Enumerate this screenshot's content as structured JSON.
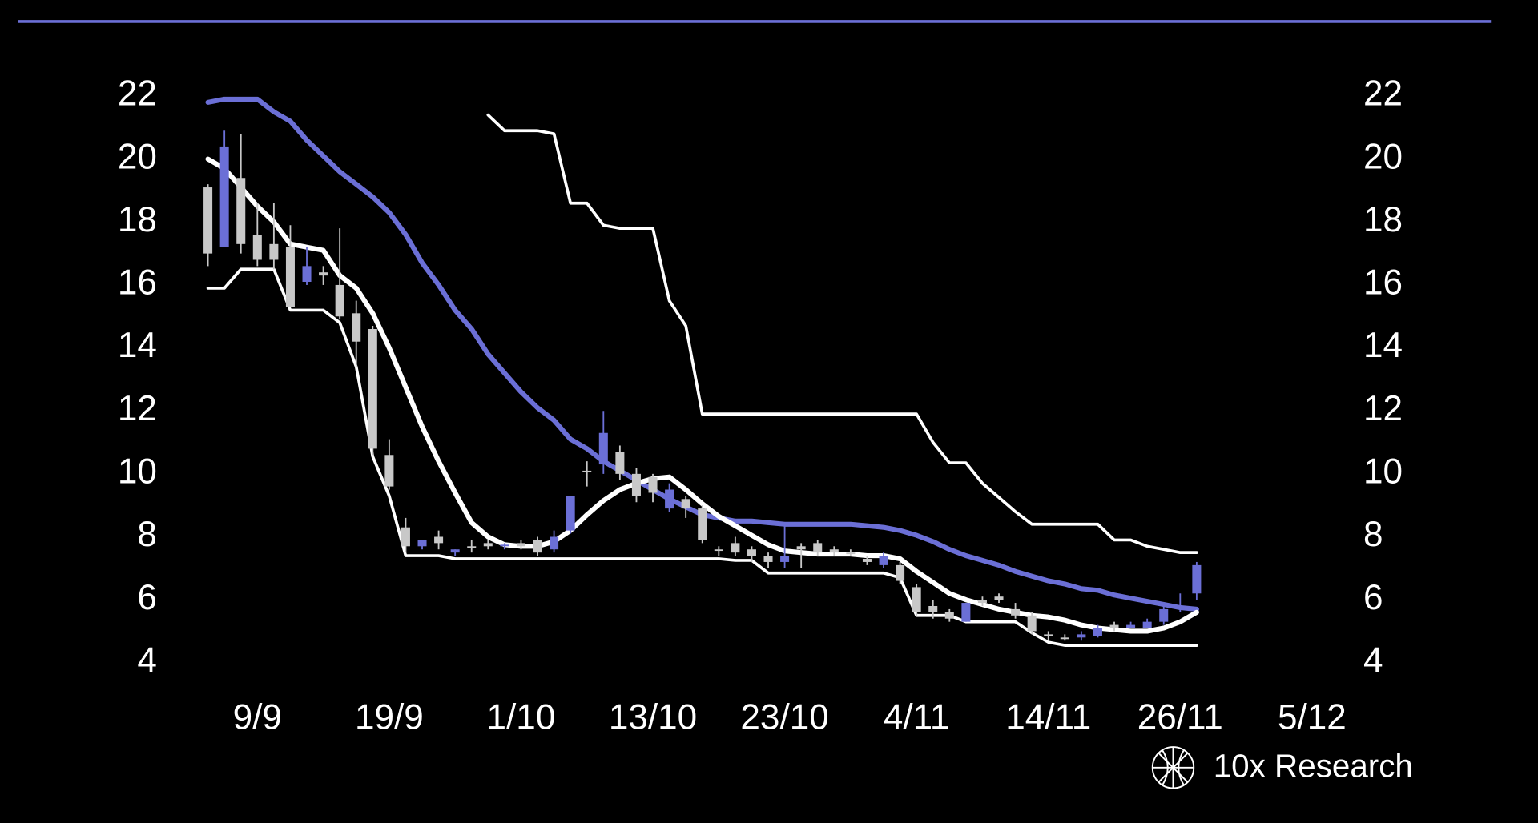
{
  "chart_data": {
    "type": "candlestick",
    "watermark": "10x Research",
    "categories": [
      null,
      null,
      null,
      "9/9",
      null,
      null,
      null,
      null,
      null,
      null,
      null,
      "19/9",
      null,
      null,
      null,
      null,
      null,
      null,
      null,
      "1/10",
      null,
      null,
      null,
      null,
      null,
      null,
      null,
      "13/10",
      null,
      null,
      null,
      null,
      null,
      null,
      null,
      "23/10",
      null,
      null,
      null,
      null,
      null,
      null,
      null,
      "4/11",
      null,
      null,
      null,
      null,
      null,
      null,
      null,
      "14/11",
      null,
      null,
      null,
      null,
      null,
      null,
      null,
      "26/11",
      null,
      null,
      null,
      null,
      null,
      null,
      null,
      "5/12"
    ],
    "open": [
      19.1,
      17.2,
      19.4,
      17.6,
      17.3,
      17.2,
      16.1,
      16.4,
      16.0,
      15.1,
      14.6,
      10.6,
      8.3,
      7.7,
      8.0,
      7.5,
      7.7,
      7.8,
      7.7,
      7.8,
      7.9,
      7.6,
      8.2,
      10.1,
      10.3,
      10.7,
      10.0,
      9.9,
      8.9,
      9.2,
      8.9,
      7.6,
      7.8,
      7.6,
      7.4,
      7.2,
      7.7,
      7.8,
      7.6,
      7.5,
      7.3,
      7.1,
      7.1,
      6.4,
      5.8,
      5.6,
      5.3,
      6.0,
      6.1,
      5.7,
      5.5,
      4.9,
      4.8,
      4.8,
      4.85,
      5.2,
      5.1,
      5.1,
      5.3,
      5.7,
      6.2,
      null,
      null,
      null,
      null,
      null,
      null,
      null
    ],
    "high": [
      19.2,
      20.9,
      20.8,
      18.6,
      18.6,
      17.9,
      17.2,
      16.6,
      17.8,
      15.5,
      14.7,
      11.1,
      8.6,
      7.9,
      8.2,
      7.6,
      7.9,
      7.9,
      7.8,
      7.9,
      8.0,
      8.2,
      9.3,
      10.4,
      12.0,
      10.9,
      10.2,
      10.0,
      9.7,
      9.3,
      9.0,
      7.7,
      8.0,
      7.7,
      7.5,
      8.4,
      7.8,
      7.9,
      7.7,
      7.6,
      7.4,
      7.5,
      7.2,
      6.5,
      6.0,
      5.7,
      5.9,
      6.1,
      6.2,
      5.9,
      5.6,
      5.0,
      4.9,
      5.0,
      5.2,
      5.3,
      5.3,
      5.4,
      5.9,
      6.2,
      7.2,
      null,
      null,
      null,
      null,
      null,
      null,
      null
    ],
    "low": [
      16.6,
      17.2,
      17.0,
      16.6,
      16.5,
      15.3,
      16.0,
      16.0,
      14.9,
      13.4,
      10.6,
      9.5,
      7.5,
      7.6,
      7.6,
      7.4,
      7.5,
      7.6,
      7.6,
      7.6,
      7.4,
      7.5,
      8.1,
      9.6,
      10.0,
      9.8,
      9.1,
      9.1,
      8.8,
      8.6,
      7.8,
      7.4,
      7.4,
      7.2,
      7.0,
      7.0,
      7.0,
      7.4,
      7.4,
      7.4,
      7.1,
      7.0,
      6.5,
      5.5,
      5.4,
      5.3,
      5.3,
      5.8,
      5.9,
      5.4,
      4.9,
      4.7,
      4.7,
      4.7,
      4.8,
      5.0,
      5.1,
      5.1,
      5.2,
      5.6,
      6.0,
      null,
      null,
      null,
      null,
      null,
      null,
      null
    ],
    "close": [
      17.0,
      20.4,
      17.3,
      16.8,
      16.8,
      15.3,
      16.6,
      16.3,
      15.0,
      14.2,
      10.8,
      9.6,
      7.7,
      7.9,
      7.8,
      7.6,
      7.7,
      7.7,
      7.75,
      7.7,
      7.5,
      8.0,
      9.3,
      10.05,
      11.3,
      10.0,
      9.3,
      9.4,
      9.5,
      8.9,
      7.9,
      7.6,
      7.5,
      7.4,
      7.2,
      7.4,
      7.6,
      7.5,
      7.5,
      7.45,
      7.2,
      7.4,
      6.6,
      5.6,
      5.6,
      5.4,
      5.9,
      5.9,
      6.0,
      5.5,
      5.0,
      4.85,
      4.75,
      4.9,
      5.1,
      5.1,
      5.2,
      5.3,
      5.7,
      5.8,
      7.1,
      null,
      null,
      null,
      null,
      null,
      null,
      null
    ],
    "up_color": "#6b6fd6",
    "down_color": "#c8c8c8",
    "lines": [
      {
        "color": "#6b6fd6",
        "line_width": 5,
        "values": [
          21.8,
          21.9,
          21.9,
          21.9,
          21.5,
          21.2,
          20.6,
          20.1,
          19.6,
          19.2,
          18.8,
          18.3,
          17.6,
          16.7,
          16.0,
          15.2,
          14.6,
          13.8,
          13.2,
          12.6,
          12.1,
          11.7,
          11.1,
          10.8,
          10.4,
          10.1,
          9.8,
          9.5,
          9.2,
          8.95,
          8.7,
          8.6,
          8.5,
          8.5,
          8.45,
          8.4,
          8.4,
          8.4,
          8.4,
          8.4,
          8.35,
          8.3,
          8.2,
          8.05,
          7.85,
          7.6,
          7.4,
          7.25,
          7.1,
          6.9,
          6.75,
          6.6,
          6.5,
          6.35,
          6.3,
          6.15,
          6.05,
          5.95,
          5.85,
          5.75,
          5.7,
          null,
          null,
          null,
          null,
          null,
          null,
          null
        ]
      },
      {
        "color": "#ffffff",
        "line_width": 5,
        "values": [
          20.0,
          19.7,
          19.1,
          18.5,
          18.0,
          17.3,
          17.2,
          17.1,
          16.3,
          15.9,
          15.1,
          14.0,
          12.75,
          11.5,
          10.4,
          9.4,
          8.45,
          8.0,
          7.75,
          7.7,
          7.7,
          7.85,
          8.2,
          8.7,
          9.15,
          9.5,
          9.7,
          9.85,
          9.9,
          9.5,
          9.05,
          8.65,
          8.35,
          8.05,
          7.75,
          7.55,
          7.5,
          7.45,
          7.45,
          7.45,
          7.4,
          7.4,
          7.3,
          6.9,
          6.55,
          6.2,
          6.0,
          5.85,
          5.7,
          5.6,
          5.5,
          5.45,
          5.35,
          5.2,
          5.1,
          5.05,
          5.0,
          5.0,
          5.1,
          5.3,
          5.6,
          null,
          null,
          null,
          null,
          null,
          null,
          null
        ]
      },
      {
        "color": "#ffffff",
        "line_width": 3,
        "values": [
          15.9,
          15.9,
          16.5,
          16.5,
          16.5,
          15.2,
          15.2,
          15.2,
          14.8,
          13.4,
          10.55,
          9.3,
          7.4,
          7.4,
          7.4,
          7.3,
          7.3,
          7.3,
          7.3,
          7.3,
          7.3,
          7.3,
          7.3,
          7.3,
          7.3,
          7.3,
          7.3,
          7.3,
          7.3,
          7.3,
          7.3,
          7.3,
          7.25,
          7.25,
          6.85,
          6.85,
          6.85,
          6.85,
          6.85,
          6.85,
          6.85,
          6.85,
          6.7,
          5.5,
          5.5,
          5.5,
          5.3,
          5.3,
          5.3,
          5.3,
          4.95,
          4.65,
          4.55,
          4.55,
          4.55,
          4.55,
          4.55,
          4.55,
          4.55,
          4.55,
          4.55,
          null,
          null,
          null,
          null,
          null,
          null,
          null
        ]
      },
      {
        "color": "#ffffff",
        "line_width": 3,
        "values": [
          null,
          null,
          null,
          null,
          null,
          null,
          null,
          null,
          null,
          null,
          null,
          null,
          null,
          null,
          null,
          null,
          null,
          21.4,
          20.9,
          20.9,
          20.9,
          20.8,
          18.6,
          18.6,
          17.9,
          17.8,
          17.8,
          17.8,
          15.5,
          14.7,
          11.9,
          11.9,
          11.9,
          11.9,
          11.9,
          11.9,
          11.9,
          11.9,
          11.9,
          11.9,
          11.9,
          11.9,
          11.9,
          11.9,
          11.0,
          10.35,
          10.35,
          9.7,
          9.25,
          8.8,
          8.4,
          8.4,
          8.4,
          8.4,
          8.4,
          7.9,
          7.9,
          7.7,
          7.6,
          7.5,
          7.5,
          null,
          null,
          null,
          null,
          null,
          null,
          null
        ]
      }
    ],
    "ylim": [
      4,
      22
    ],
    "yticks": [
      4,
      6,
      8,
      10,
      12,
      14,
      16,
      18,
      20,
      22
    ],
    "y2lim": [
      4,
      22
    ],
    "y2ticks": [
      4,
      6,
      8,
      10,
      12,
      14,
      16,
      18,
      20,
      22
    ]
  }
}
